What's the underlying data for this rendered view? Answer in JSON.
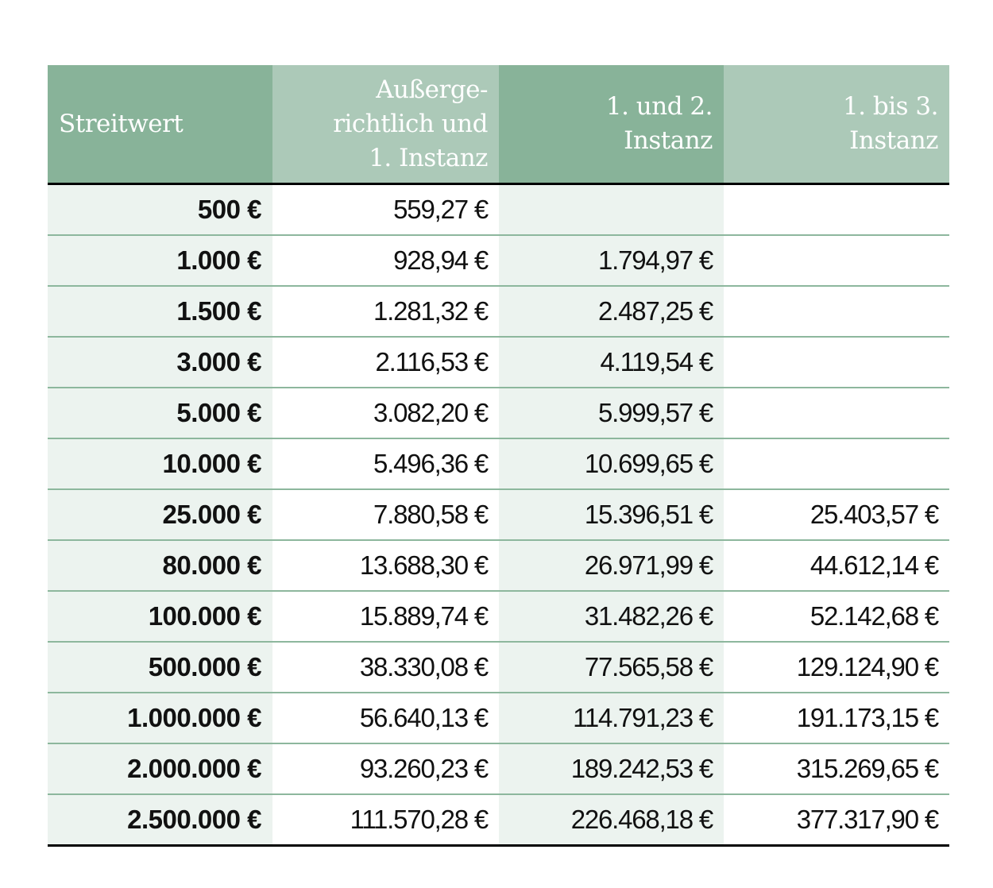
{
  "colors": {
    "header_dark": "#88b399",
    "header_light": "#acc9b8",
    "row_tint": "#ecf3ef",
    "row_line": "#8db79d"
  },
  "table": {
    "headers": [
      "Streitwert",
      "Außerge-\nrichtlich und\n1. Instanz",
      "1. und 2.\nInstanz",
      "1. bis 3.\nInstanz"
    ],
    "rows": [
      [
        "500 €",
        "559,27 €",
        "",
        ""
      ],
      [
        "1.000 €",
        "928,94 €",
        "1.794,97 €",
        ""
      ],
      [
        "1.500 €",
        "1.281,32 €",
        "2.487,25 €",
        ""
      ],
      [
        "3.000 €",
        "2.116,53 €",
        "4.119,54 €",
        ""
      ],
      [
        "5.000 €",
        "3.082,20 €",
        "5.999,57 €",
        ""
      ],
      [
        "10.000 €",
        "5.496,36 €",
        "10.699,65 €",
        ""
      ],
      [
        "25.000 €",
        "7.880,58 €",
        "15.396,51 €",
        "25.403,57 €"
      ],
      [
        "80.000 €",
        "13.688,30 €",
        "26.971,99 €",
        "44.612,14 €"
      ],
      [
        "100.000 €",
        "15.889,74 €",
        "31.482,26 €",
        "52.142,68 €"
      ],
      [
        "500.000 €",
        "38.330,08 €",
        "77.565,58 €",
        "129.124,90 €"
      ],
      [
        "1.000.000 €",
        "56.640,13 €",
        "114.791,23 €",
        "191.173,15 €"
      ],
      [
        "2.000.000 €",
        "93.260,23 €",
        "189.242,53 €",
        "315.269,65 €"
      ],
      [
        "2.500.000 €",
        "111.570,28 €",
        "226.468,18 €",
        "377.317,90 €"
      ]
    ]
  }
}
